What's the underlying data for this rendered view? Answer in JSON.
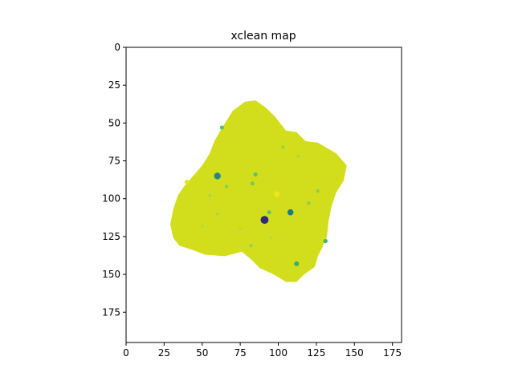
{
  "chart_data": {
    "type": "heatmap",
    "title": "xclean map",
    "xlabel": "",
    "ylabel": "",
    "xlim": [
      0,
      181
    ],
    "ylim": [
      195,
      0
    ],
    "x_ticks": [
      0,
      25,
      50,
      75,
      100,
      125,
      150,
      175
    ],
    "y_ticks": [
      0,
      25,
      50,
      75,
      100,
      125,
      150,
      175
    ],
    "grid": false,
    "colormap": "viridis",
    "background_color": "#ffffff",
    "base_color": "#d2de1c",
    "region_outline": [
      [
        62,
        55
      ],
      [
        70,
        42
      ],
      [
        78,
        36
      ],
      [
        85,
        35
      ],
      [
        92,
        40
      ],
      [
        98,
        46
      ],
      [
        105,
        55
      ],
      [
        112,
        56
      ],
      [
        118,
        62
      ],
      [
        126,
        63
      ],
      [
        138,
        70
      ],
      [
        145,
        78
      ],
      [
        143,
        88
      ],
      [
        138,
        96
      ],
      [
        135,
        105
      ],
      [
        133,
        115
      ],
      [
        132,
        125
      ],
      [
        129,
        132
      ],
      [
        126,
        138
      ],
      [
        124,
        145
      ],
      [
        117,
        150
      ],
      [
        112,
        155
      ],
      [
        105,
        155
      ],
      [
        97,
        150
      ],
      [
        88,
        146
      ],
      [
        82,
        140
      ],
      [
        76,
        135
      ],
      [
        65,
        138
      ],
      [
        52,
        137
      ],
      [
        44,
        134
      ],
      [
        35,
        131
      ],
      [
        31,
        126
      ],
      [
        29,
        117
      ],
      [
        31,
        107
      ],
      [
        34,
        98
      ],
      [
        38,
        92
      ],
      [
        44,
        85
      ],
      [
        50,
        78
      ],
      [
        55,
        70
      ],
      [
        58,
        62
      ]
    ],
    "features": [
      {
        "x": 91,
        "y": 114,
        "r": 2.6,
        "color": "#2e2a7a"
      },
      {
        "x": 60,
        "y": 85,
        "r": 2.2,
        "color": "#1f8a84"
      },
      {
        "x": 108,
        "y": 109,
        "r": 2.0,
        "color": "#1a7c8a"
      },
      {
        "x": 112,
        "y": 143,
        "r": 1.6,
        "color": "#3bac6e"
      },
      {
        "x": 131,
        "y": 128,
        "r": 1.4,
        "color": "#44b36a"
      },
      {
        "x": 63,
        "y": 53,
        "r": 1.4,
        "color": "#5ec462"
      },
      {
        "x": 85,
        "y": 84,
        "r": 1.4,
        "color": "#5ec462"
      },
      {
        "x": 83,
        "y": 90,
        "r": 1.3,
        "color": "#72c85a"
      },
      {
        "x": 94,
        "y": 109,
        "r": 1.3,
        "color": "#5ec462"
      },
      {
        "x": 66,
        "y": 92,
        "r": 1.2,
        "color": "#8bcf50"
      },
      {
        "x": 126,
        "y": 95,
        "r": 1.2,
        "color": "#8bcf50"
      },
      {
        "x": 120,
        "y": 103,
        "r": 1.2,
        "color": "#8bcf50"
      },
      {
        "x": 103,
        "y": 66,
        "r": 1.2,
        "color": "#9ad34a"
      },
      {
        "x": 99,
        "y": 97,
        "r": 1.8,
        "color": "#f2e51e"
      },
      {
        "x": 40,
        "y": 89,
        "r": 1.5,
        "color": "#e6e11e"
      },
      {
        "x": 60,
        "y": 110,
        "r": 1.1,
        "color": "#a9d743"
      },
      {
        "x": 82,
        "y": 131,
        "r": 1.2,
        "color": "#9ad34a"
      },
      {
        "x": 55,
        "y": 98,
        "r": 1.1,
        "color": "#a9d743"
      },
      {
        "x": 113,
        "y": 72,
        "r": 1.0,
        "color": "#a9d743"
      },
      {
        "x": 75,
        "y": 120,
        "r": 1.0,
        "color": "#b5da3c"
      },
      {
        "x": 50,
        "y": 118,
        "r": 1.0,
        "color": "#b5da3c"
      },
      {
        "x": 95,
        "y": 126,
        "r": 1.0,
        "color": "#b5da3c"
      }
    ]
  }
}
